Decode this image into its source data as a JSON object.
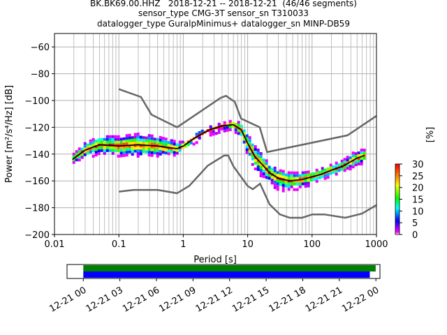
{
  "title": {
    "line1": "BK.BK69.00.HHZ   2018-12-21 -- 2018-12-21  (46/46 segments)",
    "line2": "sensor_type CMG-3T sensor_sn T310033",
    "line3": "datalogger_type GuralpMinimus+ datalogger_sn MINP-DB59"
  },
  "colors": {
    "model_curves": "#666666",
    "mode_line": "#000000",
    "coverage_top": "#008000",
    "coverage_bottom": "#0000ff",
    "grid": "#b0b0b0"
  },
  "chart_data": [
    {
      "type": "heatmap",
      "name": "ppsd",
      "xlabel": "Period [s]",
      "ylabel": "Power [m²/s⁴/Hz] [dB]",
      "x_scale": "log",
      "xlim": [
        0.01,
        1000
      ],
      "ylim": [
        -200,
        -50
      ],
      "x_ticks": [
        0.01,
        0.1,
        1,
        10,
        100,
        1000
      ],
      "x_tick_labels": [
        "0.01",
        "0.1",
        "1",
        "10",
        "100",
        "1000"
      ],
      "y_ticks": [
        -200,
        -180,
        -160,
        -140,
        -120,
        -100,
        -80,
        -60
      ],
      "y_tick_labels": [
        "−200",
        "−180",
        "−160",
        "−140",
        "−120",
        "−100",
        "−80",
        "−60"
      ],
      "grid": true,
      "colorbar": {
        "label": "[%]",
        "range": [
          0,
          30
        ],
        "ticks": [
          0,
          5,
          10,
          15,
          20,
          25,
          30
        ],
        "tick_labels": [
          "0",
          "5",
          "10",
          "15",
          "20",
          "25",
          "30"
        ],
        "colormap": "pqlx"
      },
      "mode_line": {
        "x": [
          0.019,
          0.03,
          0.05,
          0.1,
          0.2,
          0.4,
          0.8,
          1.0,
          1.5,
          2.5,
          4,
          6,
          8,
          10,
          13,
          17,
          22,
          30,
          45,
          70,
          100,
          140,
          200,
          300,
          500,
          650
        ],
        "y": [
          -144,
          -137,
          -133,
          -134,
          -133,
          -134,
          -136,
          -134,
          -128,
          -122,
          -119,
          -118,
          -122,
          -132,
          -142,
          -148,
          -154,
          -158,
          -160,
          -159,
          -157,
          -155,
          -152,
          -149,
          -143,
          -141
        ]
      },
      "density_band": {
        "x": [
          0.019,
          0.03,
          0.05,
          0.1,
          0.2,
          0.4,
          0.8,
          1.0,
          1.5,
          2.5,
          4,
          6,
          8,
          10,
          13,
          17,
          22,
          30,
          45,
          70,
          100,
          140,
          200,
          300,
          500,
          650
        ],
        "upper": [
          -141,
          -132,
          -127,
          -127,
          -125,
          -127,
          -131,
          -131,
          -126,
          -120,
          -117,
          -115,
          -117,
          -125,
          -134,
          -141,
          -148,
          -152,
          -154,
          -154,
          -153,
          -151,
          -148,
          -145,
          -137,
          -137
        ],
        "lower": [
          -146,
          -141,
          -139,
          -140,
          -140,
          -140,
          -139,
          -137,
          -131,
          -125,
          -121,
          -121,
          -128,
          -139,
          -150,
          -156,
          -160,
          -165,
          -166,
          -164,
          -161,
          -159,
          -156,
          -152,
          -147,
          -145
        ]
      },
      "new_high_noise_model": {
        "x": [
          0.1,
          0.22,
          0.32,
          0.8,
          3.8,
          4.6,
          6.3,
          7.9,
          15.4,
          20,
          354.8,
          1000
        ],
        "y": [
          -91.5,
          -97.4,
          -110.5,
          -120,
          -98,
          -96.5,
          -101,
          -113.5,
          -120,
          -138.5,
          -126,
          -111.5
        ]
      },
      "new_low_noise_model": {
        "x": [
          0.1,
          0.17,
          0.4,
          0.8,
          1.24,
          2.4,
          4.3,
          5,
          6,
          10,
          12,
          15.6,
          21.9,
          31.6,
          45,
          70,
          101,
          154,
          328,
          600,
          1000
        ],
        "y": [
          -168,
          -166.7,
          -166.7,
          -169.2,
          -163.7,
          -148.6,
          -141.1,
          -141.1,
          -149,
          -163.8,
          -166.2,
          -162.1,
          -177.5,
          -185,
          -187.5,
          -187.5,
          -185,
          -185,
          -187.5,
          -184.4,
          -178
        ]
      }
    },
    {
      "type": "bar",
      "name": "data_coverage",
      "xlabel": "",
      "x_tick_labels": [
        "12-21 00",
        "12-21 03",
        "12-21 06",
        "12-21 09",
        "12-21 12",
        "12-21 15",
        "12-21 18",
        "12-21 21",
        "12-22 00"
      ],
      "xlim": [
        "2018-12-20 22:40",
        "2018-12-22 00:20"
      ],
      "series": [
        {
          "color": "green",
          "start": "2018-12-21 00:00",
          "end": "2018-12-21 23:59"
        },
        {
          "color": "blue",
          "start": "2018-12-21 00:00",
          "end": "2018-12-21 23:30"
        }
      ]
    }
  ]
}
